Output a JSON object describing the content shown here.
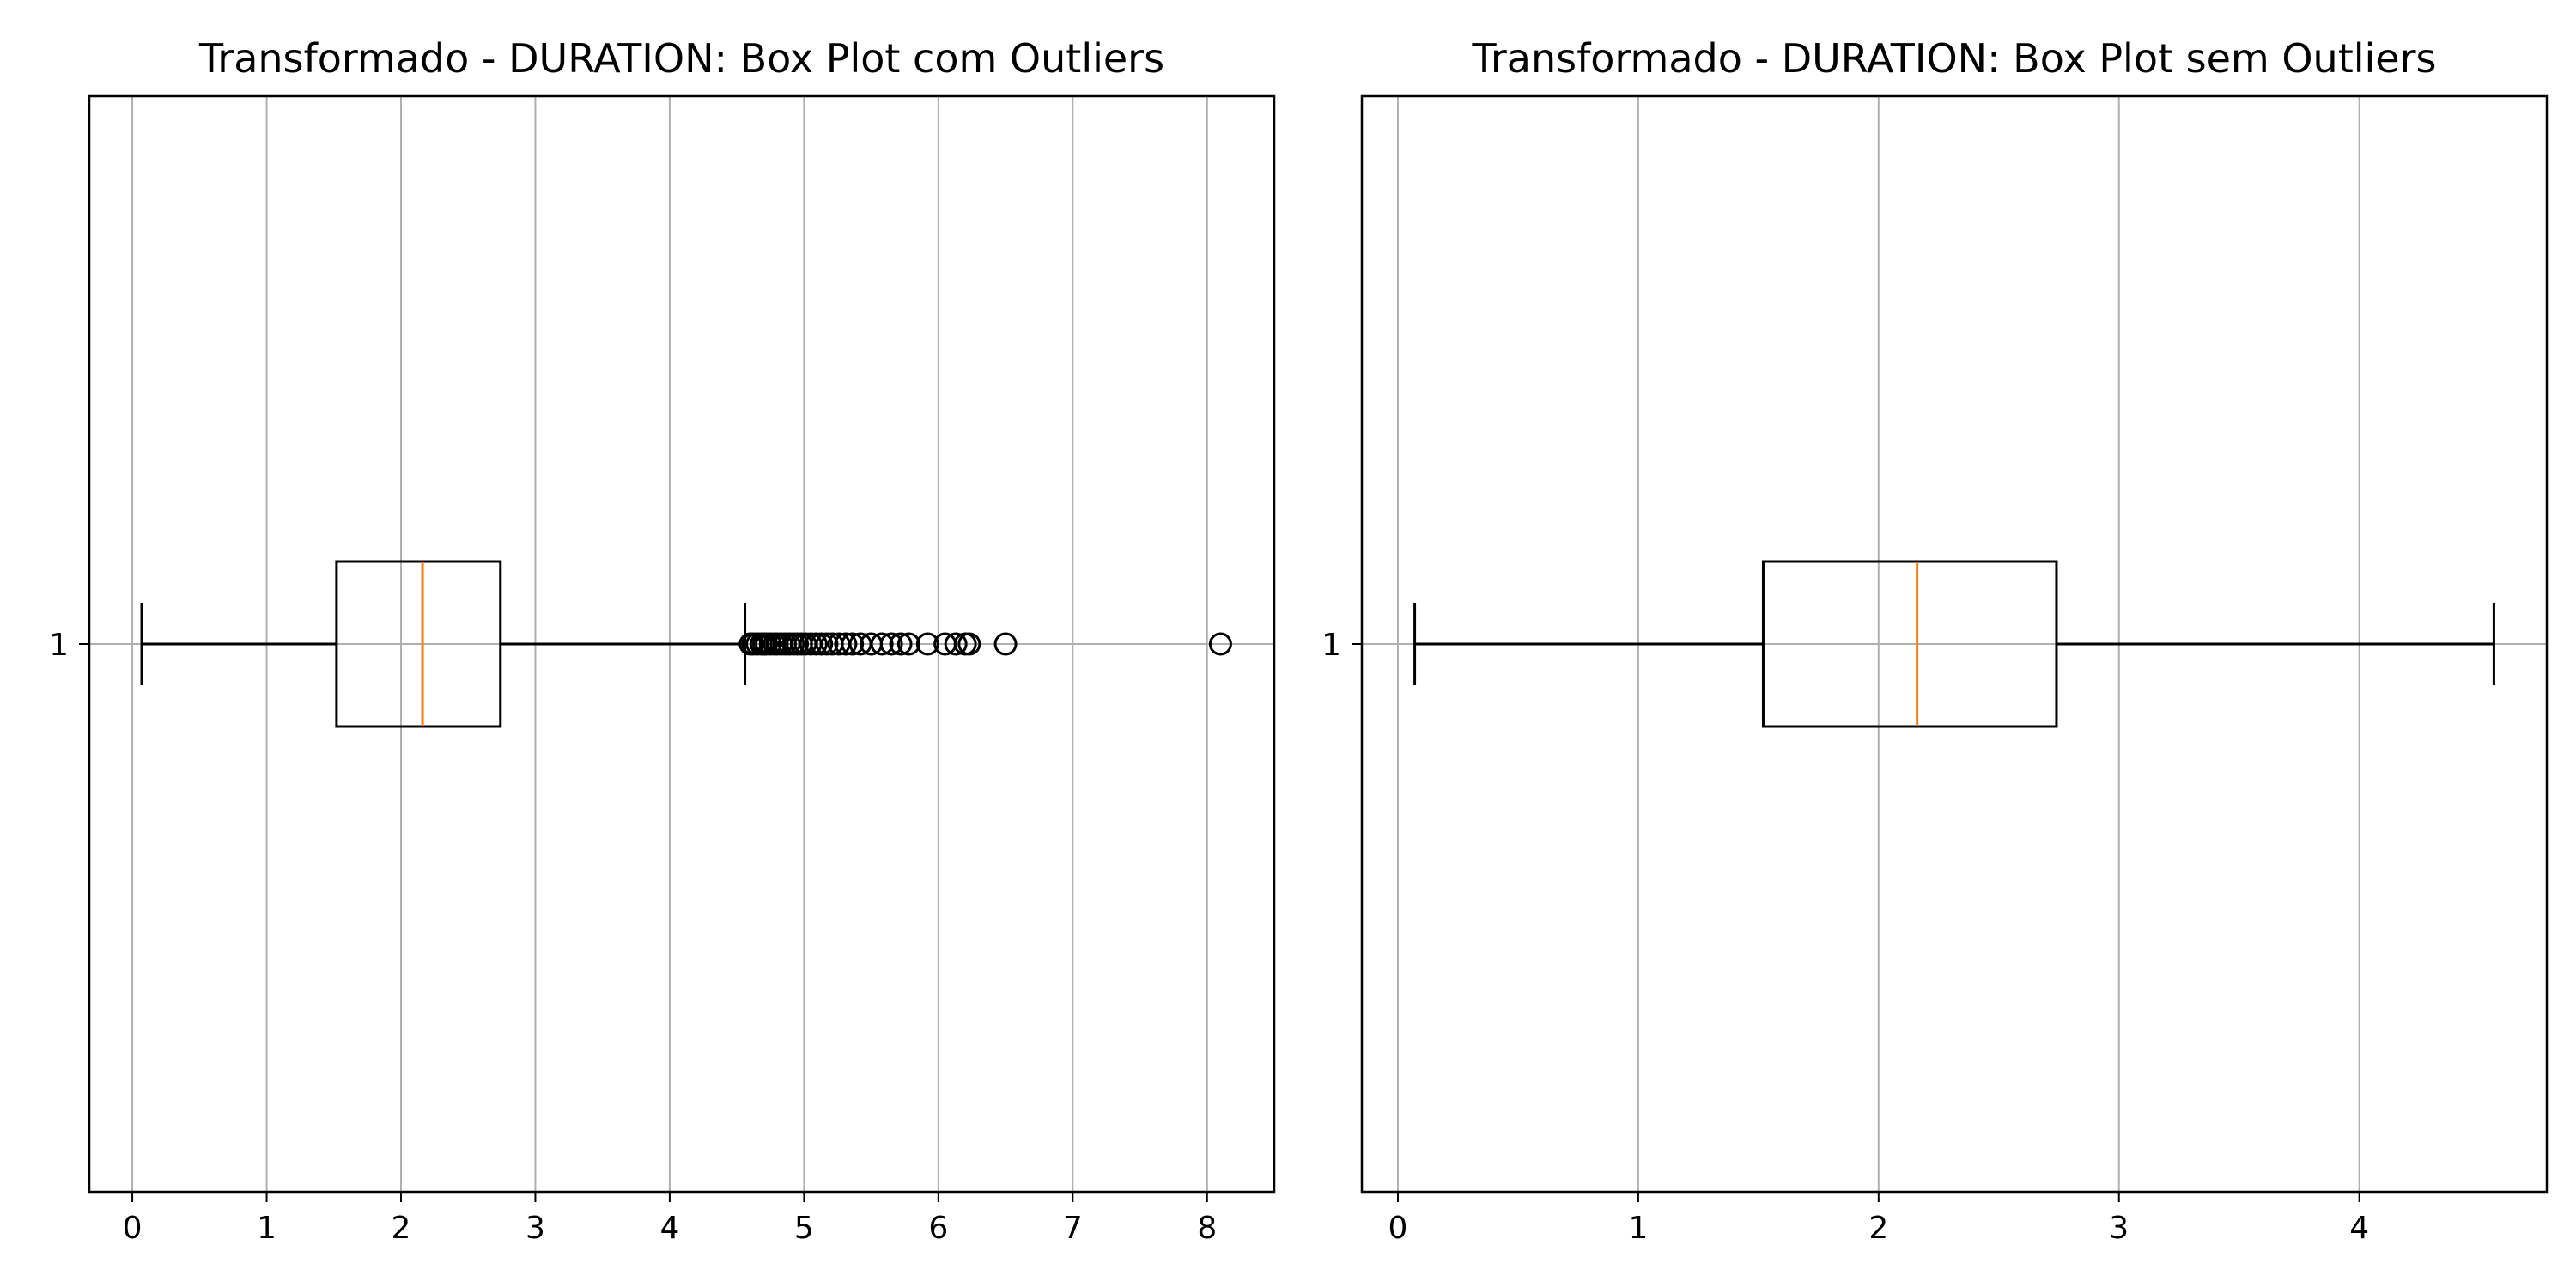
{
  "chart_data": [
    {
      "type": "boxplot",
      "title": "Transformado - DURATION: Box Plot com Outliers",
      "orientation": "horizontal",
      "categories": [
        "1"
      ],
      "xlim": [
        -0.32,
        8.5
      ],
      "xticks": [
        0,
        1,
        2,
        3,
        4,
        5,
        6,
        7,
        8
      ],
      "xtick_labels": [
        "0",
        "1",
        "2",
        "3",
        "4",
        "5",
        "6",
        "7",
        "8"
      ],
      "ytick_labels": [
        "1"
      ],
      "grid": true,
      "box": {
        "whisker_low": 0.07,
        "q1": 1.52,
        "median": 2.16,
        "q3": 2.74,
        "whisker_high": 4.56
      },
      "outliers": [
        4.6,
        4.62,
        4.65,
        4.68,
        4.7,
        4.72,
        4.75,
        4.78,
        4.8,
        4.83,
        4.86,
        4.89,
        4.92,
        4.95,
        4.98,
        5.01,
        5.05,
        5.09,
        5.13,
        5.17,
        5.21,
        5.26,
        5.31,
        5.36,
        5.42,
        5.5,
        5.58,
        5.65,
        5.72,
        5.78,
        5.92,
        6.05,
        6.13,
        6.2,
        6.23,
        6.5,
        8.1
      ]
    },
    {
      "type": "boxplot",
      "title": "Transformado - DURATION: Box Plot sem Outliers",
      "orientation": "horizontal",
      "categories": [
        "1"
      ],
      "xlim": [
        -0.15,
        4.78
      ],
      "xticks": [
        0,
        1,
        2,
        3,
        4
      ],
      "xtick_labels": [
        "0",
        "1",
        "2",
        "3",
        "4"
      ],
      "ytick_labels": [
        "1"
      ],
      "grid": true,
      "box": {
        "whisker_low": 0.07,
        "q1": 1.52,
        "median": 2.16,
        "q3": 2.74,
        "whisker_high": 4.56
      },
      "outliers": []
    }
  ],
  "colors": {
    "box": "#000000",
    "median": "#ff7f0e",
    "grid": "#b0b0b0",
    "outlier_edge": "#000000",
    "axes_frame": "#000000"
  }
}
